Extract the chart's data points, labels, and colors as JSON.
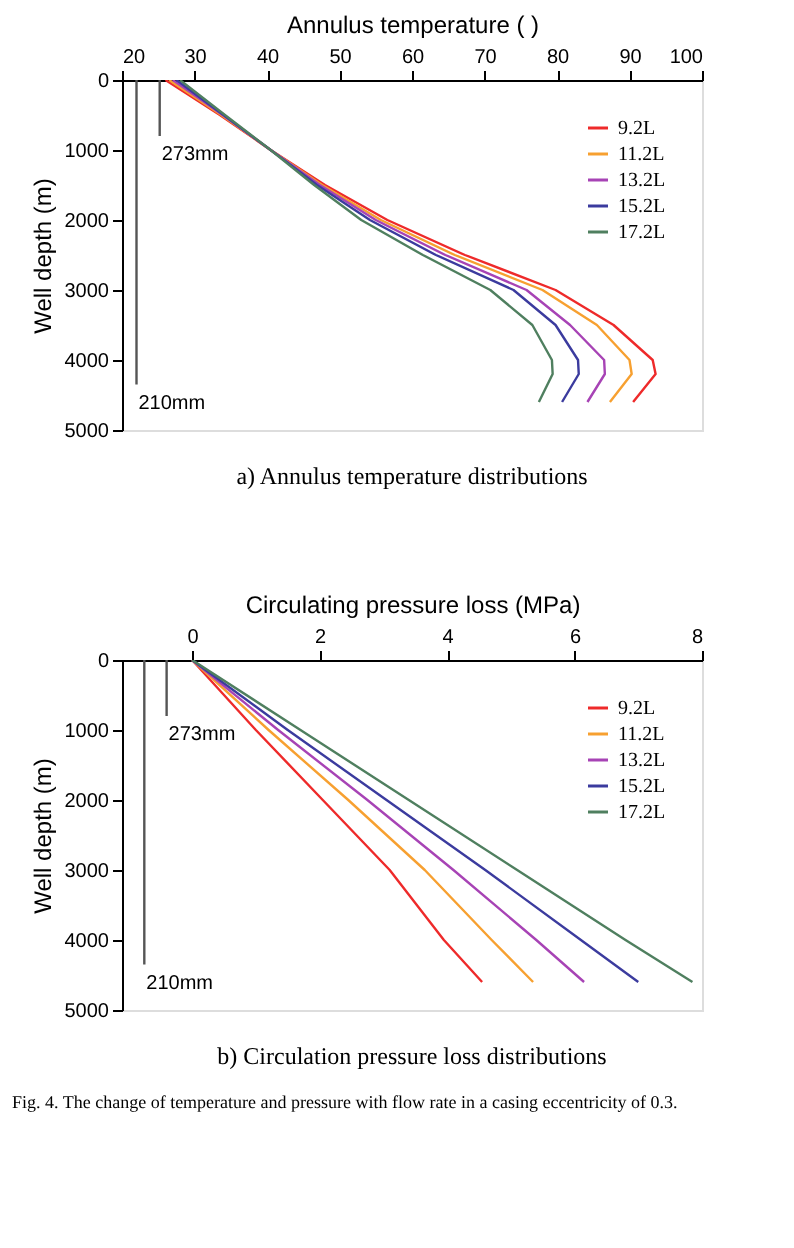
{
  "chart_data": [
    {
      "type": "line",
      "xlabel": "Annulus temperature (  )",
      "ylabel": "Well depth (m)",
      "xlim": [
        20,
        100
      ],
      "xticks": [
        20,
        30,
        40,
        50,
        60,
        70,
        80,
        90,
        100
      ],
      "ylim": [
        5000,
        0
      ],
      "yticks": [
        0,
        1000,
        2000,
        3000,
        4000,
        5000
      ],
      "grid": false,
      "legend": "top right",
      "line_style": "solid",
      "marker": "none",
      "series": [
        {
          "name": "9.2L",
          "color": "#ee2a2a",
          "x": [
            26,
            33.5,
            40.5,
            48,
            56.6,
            67.3,
            79.8,
            87.8,
            93.2,
            93.6,
            90.5
          ],
          "values": [
            0,
            500,
            1000,
            1500,
            2000,
            2500,
            3000,
            3500,
            4000,
            4200,
            4600
          ]
        },
        {
          "name": "11.2L",
          "color": "#f7a030",
          "x": [
            26.5,
            33.7,
            40.5,
            47.6,
            55.7,
            65.9,
            78,
            85.5,
            90,
            90.3,
            87.3
          ],
          "values": [
            0,
            500,
            1000,
            1500,
            2000,
            2500,
            3000,
            3500,
            4000,
            4200,
            4600
          ]
        },
        {
          "name": "13.2L",
          "color": "#a743b5",
          "x": [
            27,
            33.9,
            40.5,
            47.3,
            55,
            64.6,
            75.8,
            81.8,
            86.5,
            86.6,
            84.2
          ],
          "values": [
            0,
            500,
            1000,
            1500,
            2000,
            2500,
            3000,
            3500,
            4000,
            4200,
            4600
          ]
        },
        {
          "name": "15.2L",
          "color": "#3b3b9e",
          "x": [
            27.5,
            34,
            40.5,
            46.9,
            54.2,
            63.3,
            74,
            79.8,
            82.9,
            83,
            80.7
          ],
          "values": [
            0,
            500,
            1000,
            1500,
            2000,
            2500,
            3000,
            3500,
            4000,
            4200,
            4600
          ]
        },
        {
          "name": "17.2L",
          "color": "#4f7f5f",
          "x": [
            28,
            34.2,
            40.5,
            46.5,
            53,
            61.5,
            70.8,
            76.6,
            79.3,
            79.4,
            77.5
          ],
          "values": [
            0,
            500,
            1000,
            1500,
            2000,
            2500,
            3000,
            3500,
            4000,
            4200,
            4600
          ]
        },
        {
          "color": "#555555",
          "x": [
            25.2,
            25.2
          ],
          "values": [
            0,
            800
          ]
        },
        {
          "color": "#555555",
          "x": [
            22,
            22
          ],
          "values": [
            0,
            4350
          ]
        }
      ],
      "annotations": [
        {
          "text": "273mm",
          "x": 25.2,
          "y": 800
        },
        {
          "text": "210mm",
          "x": 22,
          "y": 4350
        },
        "a) Annulus temperature distributions"
      ]
    },
    {
      "type": "line",
      "xlabel": "Circulating pressure loss (MPa)",
      "ylabel": "Well depth (m)",
      "xlim": [
        -1.1,
        8
      ],
      "xticks": [
        0,
        2,
        4,
        6,
        8
      ],
      "ylim": [
        5000,
        0
      ],
      "yticks": [
        0,
        1000,
        2000,
        3000,
        4000,
        5000
      ],
      "grid": false,
      "legend": "top right",
      "line_style": "solid",
      "marker": "none",
      "series": [
        {
          "name": "9.2L",
          "color": "#ee2a2a",
          "x": [
            0,
            1.0,
            2.05,
            3.1,
            3.95,
            4.55
          ],
          "values": [
            0,
            1000,
            2000,
            3000,
            4000,
            4600
          ]
        },
        {
          "name": "11.2L",
          "color": "#f7a030",
          "x": [
            0,
            1.2,
            2.45,
            3.65,
            4.7,
            5.35
          ],
          "values": [
            0,
            1000,
            2000,
            3000,
            4000,
            4600
          ]
        },
        {
          "name": "13.2L",
          "color": "#a743b5",
          "x": [
            0,
            1.35,
            2.75,
            4.1,
            5.4,
            6.15
          ],
          "values": [
            0,
            1000,
            2000,
            3000,
            4000,
            4600
          ]
        },
        {
          "name": "15.2L",
          "color": "#3b3b9e",
          "x": [
            0,
            1.5,
            3.05,
            4.6,
            6.1,
            7.0
          ],
          "values": [
            0,
            1000,
            2000,
            3000,
            4000,
            4600
          ]
        },
        {
          "name": "17.2L",
          "color": "#4f7f5f",
          "x": [
            0,
            1.7,
            3.4,
            5.1,
            6.8,
            7.85
          ],
          "values": [
            0,
            1000,
            2000,
            3000,
            4000,
            4600
          ]
        },
        {
          "color": "#555555",
          "x": [
            -0.4,
            -0.4
          ],
          "values": [
            0,
            800
          ]
        },
        {
          "color": "#555555",
          "x": [
            -0.75,
            -0.75
          ],
          "values": [
            0,
            4350
          ]
        }
      ],
      "annotations": [
        {
          "text": "273mm",
          "x": -0.4,
          "y": 800
        },
        {
          "text": "210mm",
          "x": -0.75,
          "y": 4350
        },
        "b) Circulation pressure loss distributions",
        "Fig. 4. The change of temperature and pressure with flow rate in a casing eccentricity of 0.3."
      ]
    }
  ]
}
